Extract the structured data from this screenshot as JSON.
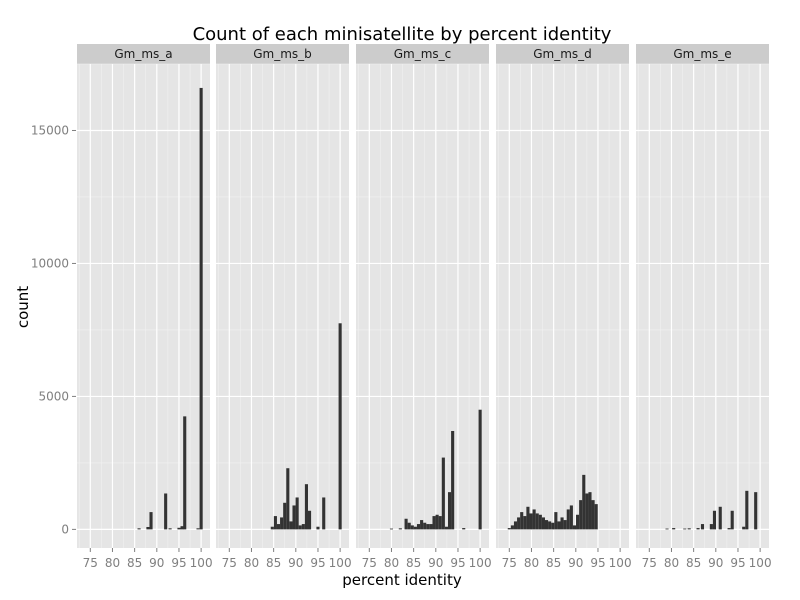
{
  "chart_data": {
    "type": "bar",
    "title": "Count of each minisatellite by percent identity",
    "xlabel": "percent identity",
    "ylabel": "count",
    "xlim": [
      72,
      102
    ],
    "ylim": [
      -700,
      17500
    ],
    "x_ticks": [
      75,
      80,
      85,
      90,
      95,
      100
    ],
    "y_ticks": [
      0,
      5000,
      10000,
      15000
    ],
    "bin_width": 0.7,
    "grid": true,
    "panels": [
      {
        "name": "Gm_ms_a",
        "bars": [
          {
            "x": 86,
            "y": 40
          },
          {
            "x": 88,
            "y": 90
          },
          {
            "x": 88.7,
            "y": 650
          },
          {
            "x": 92,
            "y": 1350
          },
          {
            "x": 93,
            "y": 40
          },
          {
            "x": 95,
            "y": 60
          },
          {
            "x": 95.7,
            "y": 120
          },
          {
            "x": 96.3,
            "y": 4250
          },
          {
            "x": 99.3,
            "y": 40
          },
          {
            "x": 100,
            "y": 16600
          }
        ]
      },
      {
        "name": "Gm_ms_b",
        "bars": [
          {
            "x": 84.7,
            "y": 100
          },
          {
            "x": 85.4,
            "y": 500
          },
          {
            "x": 86.1,
            "y": 200
          },
          {
            "x": 86.8,
            "y": 450
          },
          {
            "x": 87.5,
            "y": 1000
          },
          {
            "x": 88.2,
            "y": 2300
          },
          {
            "x": 88.9,
            "y": 300
          },
          {
            "x": 89.6,
            "y": 900
          },
          {
            "x": 90.3,
            "y": 1200
          },
          {
            "x": 91,
            "y": 150
          },
          {
            "x": 91.7,
            "y": 200
          },
          {
            "x": 92.4,
            "y": 1700
          },
          {
            "x": 93.1,
            "y": 700
          },
          {
            "x": 95,
            "y": 100
          },
          {
            "x": 96.3,
            "y": 1200
          },
          {
            "x": 100,
            "y": 7750
          }
        ]
      },
      {
        "name": "Gm_ms_c",
        "bars": [
          {
            "x": 80,
            "y": 30
          },
          {
            "x": 82,
            "y": 40
          },
          {
            "x": 83.3,
            "y": 400
          },
          {
            "x": 84,
            "y": 250
          },
          {
            "x": 84.7,
            "y": 150
          },
          {
            "x": 85.4,
            "y": 100
          },
          {
            "x": 86.1,
            "y": 200
          },
          {
            "x": 86.8,
            "y": 350
          },
          {
            "x": 87.5,
            "y": 250
          },
          {
            "x": 88.2,
            "y": 200
          },
          {
            "x": 88.9,
            "y": 200
          },
          {
            "x": 89.6,
            "y": 500
          },
          {
            "x": 90.3,
            "y": 550
          },
          {
            "x": 91,
            "y": 500
          },
          {
            "x": 91.7,
            "y": 2700
          },
          {
            "x": 92.4,
            "y": 100
          },
          {
            "x": 93.1,
            "y": 1400
          },
          {
            "x": 93.8,
            "y": 3700
          },
          {
            "x": 96.3,
            "y": 50
          },
          {
            "x": 100,
            "y": 4500
          }
        ]
      },
      {
        "name": "Gm_ms_d",
        "bars": [
          {
            "x": 75,
            "y": 50
          },
          {
            "x": 75.7,
            "y": 150
          },
          {
            "x": 76.4,
            "y": 300
          },
          {
            "x": 77.1,
            "y": 450
          },
          {
            "x": 77.8,
            "y": 650
          },
          {
            "x": 78.5,
            "y": 500
          },
          {
            "x": 79.2,
            "y": 850
          },
          {
            "x": 79.9,
            "y": 600
          },
          {
            "x": 80.6,
            "y": 750
          },
          {
            "x": 81.3,
            "y": 600
          },
          {
            "x": 82,
            "y": 550
          },
          {
            "x": 82.7,
            "y": 450
          },
          {
            "x": 83.4,
            "y": 350
          },
          {
            "x": 84.1,
            "y": 300
          },
          {
            "x": 84.8,
            "y": 250
          },
          {
            "x": 85.5,
            "y": 650
          },
          {
            "x": 86.2,
            "y": 300
          },
          {
            "x": 86.9,
            "y": 450
          },
          {
            "x": 87.6,
            "y": 350
          },
          {
            "x": 88.3,
            "y": 750
          },
          {
            "x": 89,
            "y": 900
          },
          {
            "x": 89.7,
            "y": 150
          },
          {
            "x": 90.4,
            "y": 550
          },
          {
            "x": 91.1,
            "y": 1100
          },
          {
            "x": 91.8,
            "y": 2050
          },
          {
            "x": 92.5,
            "y": 1350
          },
          {
            "x": 93.2,
            "y": 1400
          },
          {
            "x": 93.9,
            "y": 1100
          },
          {
            "x": 94.6,
            "y": 950
          }
        ]
      },
      {
        "name": "Gm_ms_e",
        "bars": [
          {
            "x": 79,
            "y": 30
          },
          {
            "x": 80.5,
            "y": 50
          },
          {
            "x": 83,
            "y": 30
          },
          {
            "x": 84,
            "y": 40
          },
          {
            "x": 86,
            "y": 50
          },
          {
            "x": 87,
            "y": 200
          },
          {
            "x": 89,
            "y": 200
          },
          {
            "x": 89.7,
            "y": 700
          },
          {
            "x": 91,
            "y": 850
          },
          {
            "x": 93,
            "y": 50
          },
          {
            "x": 93.7,
            "y": 700
          },
          {
            "x": 96.3,
            "y": 100
          },
          {
            "x": 97,
            "y": 1450
          },
          {
            "x": 99,
            "y": 1400
          }
        ]
      }
    ]
  }
}
